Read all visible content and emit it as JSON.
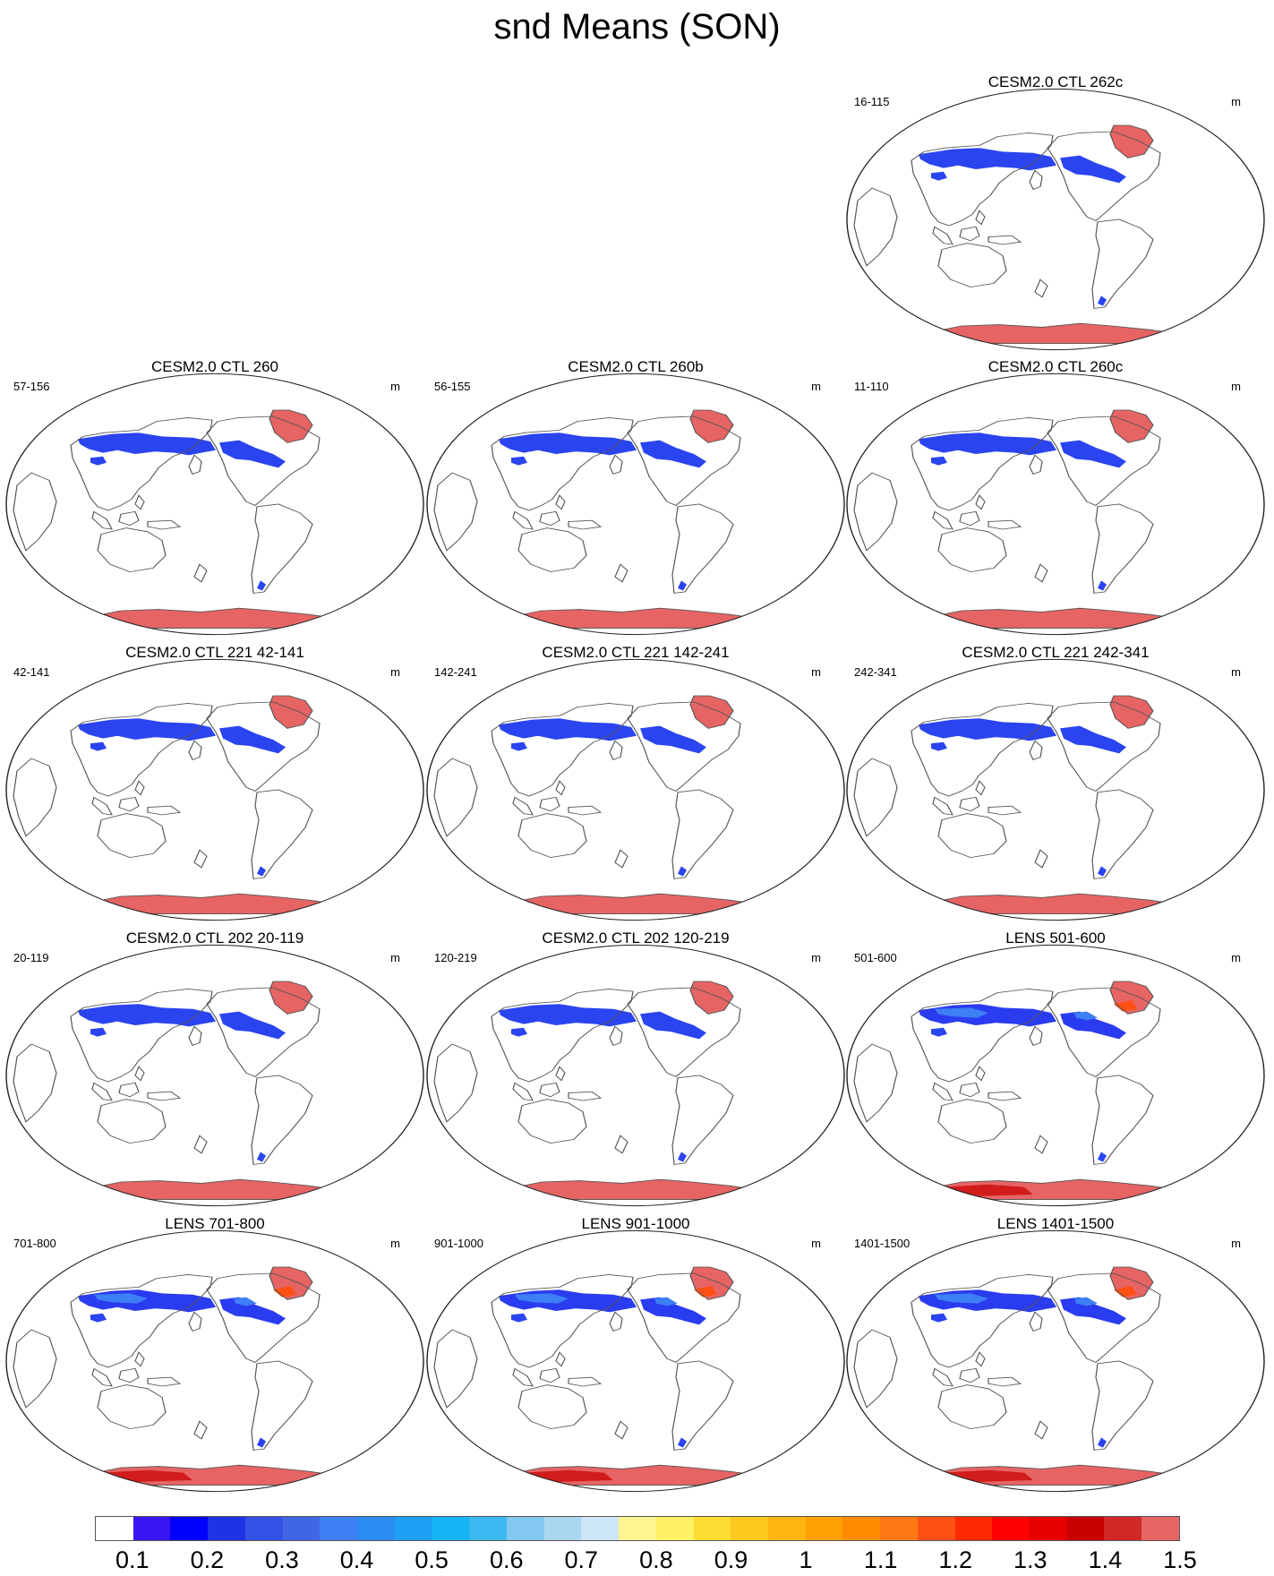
{
  "title": "snd Means (SON)",
  "unit": "m",
  "panels": [
    {
      "label": "CESM2.0 CTL 262c",
      "years": "16-115",
      "variant": "ctl"
    },
    {
      "label": "CESM2.0 CTL 260",
      "years": "57-156",
      "variant": "ctl"
    },
    {
      "label": "CESM2.0 CTL 260b",
      "years": "56-155",
      "variant": "ctl"
    },
    {
      "label": "CESM2.0 CTL 260c",
      "years": "11-110",
      "variant": "ctl"
    },
    {
      "label": "CESM2.0 CTL 221 42-141",
      "years": "42-141",
      "variant": "ctl"
    },
    {
      "label": "CESM2.0 CTL 221 142-241",
      "years": "142-241",
      "variant": "ctl"
    },
    {
      "label": "CESM2.0 CTL 221 242-341",
      "years": "242-341",
      "variant": "ctl"
    },
    {
      "label": "CESM2.0 CTL 202 20-119",
      "years": "20-119",
      "variant": "ctl"
    },
    {
      "label": "CESM2.0 CTL 202 120-219",
      "years": "120-219",
      "variant": "ctl"
    },
    {
      "label": "LENS 501-600",
      "years": "501-600",
      "variant": "lens"
    },
    {
      "label": "LENS 701-800",
      "years": "701-800",
      "variant": "lens"
    },
    {
      "label": "LENS 901-1000",
      "years": "901-1000",
      "variant": "lens"
    },
    {
      "label": "LENS 1401-1500",
      "years": "1401-1500",
      "variant": "lens"
    }
  ],
  "colorbar": {
    "colors": [
      "#ffffff",
      "#3b16f2",
      "#0000ff",
      "#1e32e6",
      "#3552e6",
      "#4066e6",
      "#3d7ff5",
      "#2b8cf2",
      "#1ea0f5",
      "#14b4f5",
      "#3cb9f0",
      "#82c8f0",
      "#aad7f0",
      "#cde6f5",
      "#fff591",
      "#fff064",
      "#ffdc32",
      "#ffc81e",
      "#ffb40f",
      "#ffa000",
      "#ff8c00",
      "#ff7814",
      "#ff5014",
      "#ff2800",
      "#ff0000",
      "#e60000",
      "#c80000",
      "#d22828",
      "#e66464"
    ],
    "labels": [
      "0.1",
      "0.2",
      "0.3",
      "0.4",
      "0.5",
      "0.6",
      "0.7",
      "0.8",
      "0.9",
      "1",
      "1.1",
      "1.2",
      "1.3",
      "1.4",
      "1.5"
    ]
  }
}
